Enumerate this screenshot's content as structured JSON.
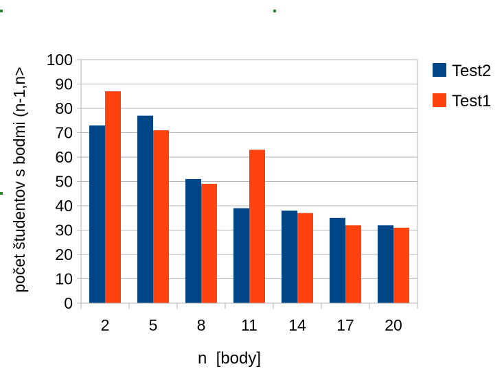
{
  "chart_data": {
    "type": "bar",
    "categories": [
      "2",
      "5",
      "8",
      "11",
      "14",
      "17",
      "20"
    ],
    "series": [
      {
        "name": "Test2",
        "color": "#004586",
        "values": [
          73,
          77,
          51,
          39,
          38,
          35,
          32
        ]
      },
      {
        "name": "Test1",
        "color": "#ff420e",
        "values": [
          87,
          71,
          49,
          63,
          37,
          32,
          31
        ]
      }
    ],
    "xlabel": "n  [body]",
    "ylabel": "počet študentov s bodmi (n-1,n>",
    "ylim": [
      0,
      100
    ],
    "yticks": [
      "0",
      "10",
      "20",
      "30",
      "40",
      "50",
      "60",
      "70",
      "80",
      "90",
      "100"
    ],
    "grid": true,
    "legend_position": "right"
  }
}
